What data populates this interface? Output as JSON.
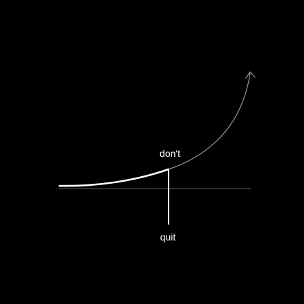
{
  "labels": {
    "top": "don't",
    "bottom": "quit"
  },
  "colors": {
    "background": "#000000",
    "baseline": "#5a5a5a",
    "curve_bold": "#ffffff",
    "curve_thin": "#9a9a9a",
    "marker": "#ffffff",
    "text": "#ffffff"
  },
  "icons": {
    "curve_end": "arrow-head-icon"
  }
}
